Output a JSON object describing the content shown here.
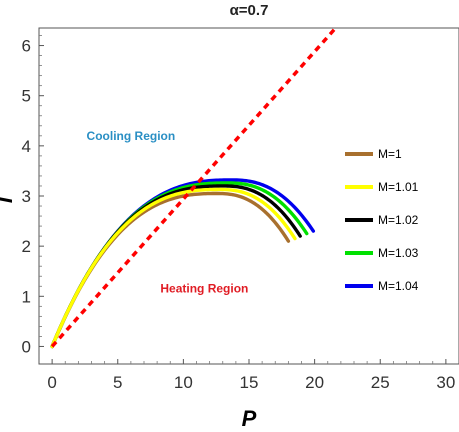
{
  "chart_data": {
    "type": "line",
    "title": "α=0.7",
    "xlabel": "P",
    "ylabel": "T",
    "xlim": [
      -1,
      31
    ],
    "ylim": [
      -0.35,
      6.35
    ],
    "xticks": [
      "0",
      "5",
      "10",
      "15",
      "20",
      "25",
      "30"
    ],
    "yticks": [
      "0",
      "1",
      "2",
      "3",
      "4",
      "5",
      "6"
    ],
    "annotations": [
      {
        "text": "Cooling Region",
        "x": 6.0,
        "y": 4.12,
        "color": "#2a8fc4"
      },
      {
        "text": "Heating Region",
        "x": 11.6,
        "y": 1.08,
        "color": "#e01c24"
      }
    ],
    "series": [
      {
        "name": "M=1",
        "color": "#a8702e",
        "P_end": 18.0,
        "T_peak": 3.05,
        "P_peak": 12.6,
        "T_end": 2.1
      },
      {
        "name": "M=1.01",
        "color": "#ffff00",
        "P_end": 18.5,
        "T_peak": 3.13,
        "P_peak": 12.8,
        "T_end": 2.15
      },
      {
        "name": "M=1.02",
        "color": "#000000",
        "P_end": 18.9,
        "T_peak": 3.2,
        "P_peak": 13.1,
        "T_end": 2.2
      },
      {
        "name": "M=1.03",
        "color": "#00e000",
        "P_end": 19.4,
        "T_peak": 3.26,
        "P_peak": 13.4,
        "T_end": 2.25
      },
      {
        "name": "M=1.04",
        "color": "#0000ee",
        "P_end": 19.9,
        "T_peak": 3.32,
        "P_peak": 13.7,
        "T_end": 2.3
      }
    ],
    "inversion_line": {
      "color": "#ff0000",
      "style": "dashed",
      "points": [
        [
          0,
          0
        ],
        [
          21.6,
          6.35
        ]
      ]
    },
    "legend": "right",
    "grid": false
  }
}
